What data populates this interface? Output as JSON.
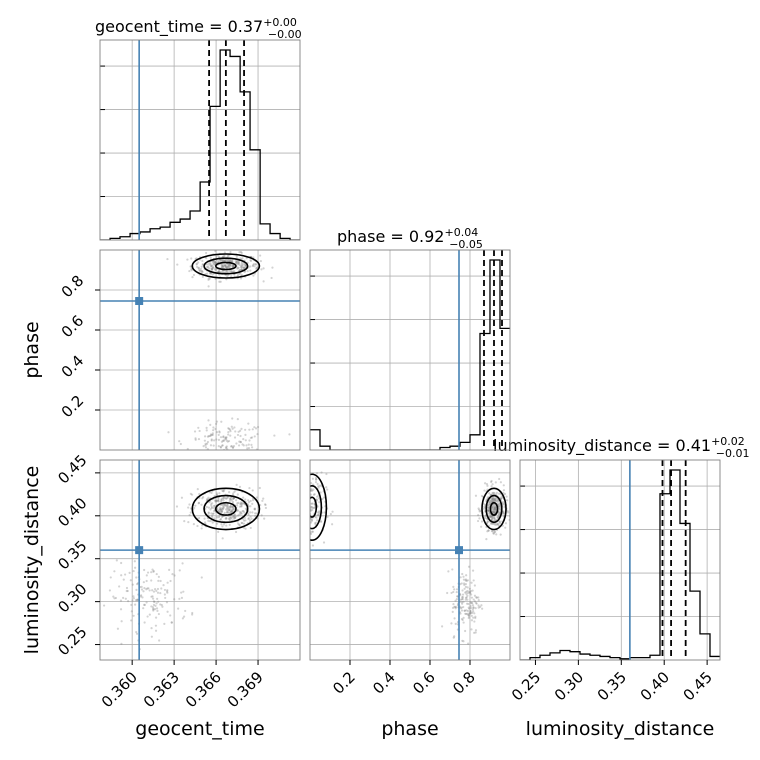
{
  "colors": {
    "truth": "#4682b4",
    "hist": "#000000",
    "samples": "#808080",
    "grid": "#b0b0b0"
  },
  "titles": {
    "geocent_time": {
      "label": "geocent_time",
      "value": "0.37",
      "plus": "+0.00",
      "minus": "−0.00"
    },
    "phase": {
      "label": "phase",
      "value": "0.92",
      "plus": "+0.04",
      "minus": "−0.05"
    },
    "luminosity_distance": {
      "label": "luminosity_distance",
      "value": "0.41",
      "plus": "+0.02",
      "minus": "−0.01"
    }
  },
  "chart_data": {
    "type": "corner",
    "parameters": [
      "geocent_time",
      "phase",
      "luminosity_distance"
    ],
    "truths": {
      "geocent_time": 0.3605,
      "phase": 0.745,
      "luminosity_distance": 0.36
    },
    "ranges": {
      "geocent_time": [
        0.3577,
        0.372
      ],
      "phase": [
        0.0,
        1.0
      ],
      "luminosity_distance": [
        0.232,
        0.465
      ]
    },
    "ticks": {
      "geocent_time": {
        "values": [
          0.36,
          0.363,
          0.366,
          0.369
        ],
        "labels": [
          "0.360",
          "0.363",
          "0.366",
          "0.369"
        ]
      },
      "phase_x": {
        "values": [
          0.2,
          0.4,
          0.6,
          0.8
        ],
        "labels": [
          "0.2",
          "0.4",
          "0.6",
          "0.8"
        ]
      },
      "phase_y": {
        "values": [
          0.2,
          0.4,
          0.6,
          0.8
        ],
        "labels": [
          "0.2",
          "0.4",
          "0.6",
          "0.8"
        ]
      },
      "luminosity_distance": {
        "values": [
          0.25,
          0.3,
          0.35,
          0.4,
          0.45
        ],
        "labels": [
          "0.25",
          "0.30",
          "0.35",
          "0.40",
          "0.45"
        ]
      }
    },
    "quantiles": {
      "geocent_time": [
        0.3655,
        0.3667,
        0.368
      ],
      "phase": [
        0.87,
        0.92,
        0.96
      ],
      "luminosity_distance": [
        0.398,
        0.408,
        0.425
      ]
    },
    "histograms": {
      "geocent_time": {
        "edges": [
          0.3577,
          0.35842,
          0.35913,
          0.35985,
          0.36056,
          0.36128,
          0.362,
          0.36271,
          0.36343,
          0.36414,
          0.36486,
          0.36557,
          0.36629,
          0.367,
          0.36772,
          0.36843,
          0.36915,
          0.36986,
          0.37058,
          0.37129,
          0.372
        ],
        "counts": [
          0,
          1,
          2,
          4,
          5,
          7,
          8,
          11,
          13,
          18,
          36,
          83,
          118,
          114,
          92,
          56,
          10,
          4,
          1,
          0
        ]
      },
      "phase": {
        "edges": [
          0.0,
          0.05,
          0.1,
          0.15,
          0.2,
          0.25,
          0.3,
          0.35,
          0.4,
          0.45,
          0.5,
          0.55,
          0.6,
          0.65,
          0.7,
          0.75,
          0.8,
          0.85,
          0.9,
          0.95,
          1.0
        ],
        "counts": [
          16,
          3,
          0,
          0,
          0,
          0,
          0,
          0,
          0,
          0,
          0,
          0,
          0,
          2,
          3,
          6,
          12,
          92,
          150,
          96
        ]
      },
      "luminosity_distance": {
        "edges": [
          0.232,
          0.24365,
          0.2553,
          0.26695,
          0.2786,
          0.29025,
          0.3019,
          0.31355,
          0.3252,
          0.33685,
          0.3485,
          0.36015,
          0.3718,
          0.38345,
          0.3951,
          0.40675,
          0.4184,
          0.43005,
          0.4417,
          0.45335,
          0.465
        ],
        "counts": [
          0,
          2,
          4,
          6,
          8,
          7,
          5,
          4,
          3,
          2,
          1,
          2,
          2,
          4,
          140,
          160,
          115,
          58,
          22,
          3
        ]
      }
    },
    "density_modes": [
      {
        "x": "geocent_time",
        "y": "phase",
        "centers": [
          [
            0.3667,
            0.92
          ],
          [
            0.3667,
            0.04
          ]
        ]
      },
      {
        "x": "geocent_time",
        "y": "luminosity_distance",
        "centers": [
          [
            0.3667,
            0.408
          ],
          [
            0.3612,
            0.305
          ]
        ]
      },
      {
        "x": "phase",
        "y": "luminosity_distance",
        "centers": [
          [
            0.92,
            0.408
          ],
          [
            0.01,
            0.41
          ],
          [
            0.78,
            0.3
          ]
        ]
      }
    ]
  },
  "axis_labels": {
    "geocent_time": "geocent_time",
    "phase": "phase",
    "luminosity_distance": "luminosity_distance"
  }
}
